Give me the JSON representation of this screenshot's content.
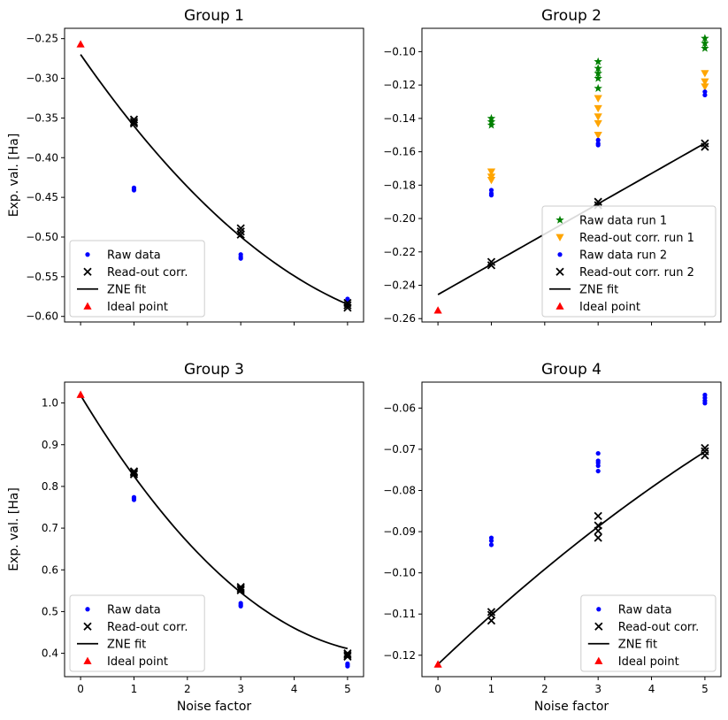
{
  "figure": {
    "xlabel": "Noise factor",
    "ylabel": "Exp. val. [Ha]"
  },
  "chart_data": [
    {
      "type": "scatter",
      "title": "Group 1",
      "xlim": [
        -0.3,
        5.3
      ],
      "ylim": [
        -0.607,
        -0.237
      ],
      "xticks": [
        0,
        1,
        2,
        3,
        4,
        5
      ],
      "yticks": [
        -0.6,
        -0.55,
        -0.5,
        -0.45,
        -0.4,
        -0.35,
        -0.3,
        -0.25
      ],
      "yticklabels": [
        "−0.60",
        "−0.55",
        "−0.50",
        "−0.45",
        "−0.40",
        "−0.35",
        "−0.30",
        "−0.25"
      ],
      "show_xticklabels": false,
      "show_xlabel": false,
      "show_ylabel": true,
      "legend_position": "lower-left",
      "series": [
        {
          "name": "Raw data",
          "marker": "dot",
          "color": "#0000ff",
          "points": [
            [
              1,
              -0.438
            ],
            [
              1,
              -0.44
            ],
            [
              1,
              -0.441
            ],
            [
              3,
              -0.522
            ],
            [
              3,
              -0.525
            ],
            [
              3,
              -0.527
            ],
            [
              5,
              -0.578
            ],
            [
              5,
              -0.58
            ]
          ]
        },
        {
          "name": "Read-out corr.",
          "marker": "x",
          "color": "#000000",
          "points": [
            [
              1,
              -0.352
            ],
            [
              1,
              -0.355
            ],
            [
              1,
              -0.357
            ],
            [
              3,
              -0.489
            ],
            [
              3,
              -0.493
            ],
            [
              3,
              -0.497
            ],
            [
              5,
              -0.583
            ],
            [
              5,
              -0.586
            ],
            [
              5,
              -0.589
            ]
          ]
        },
        {
          "name": "ZNE fit",
          "marker": "line",
          "color": "#000000",
          "fit": {
            "x0": 0,
            "x1": 5,
            "coef": [
              -0.27,
              -0.0969,
              0.00679
            ]
          }
        },
        {
          "name": "Ideal point",
          "marker": "triangle",
          "color": "#ff0000",
          "points": [
            [
              0,
              -0.257
            ]
          ]
        }
      ]
    },
    {
      "type": "scatter",
      "title": "Group 2",
      "xlim": [
        -0.3,
        5.3
      ],
      "ylim": [
        -0.262,
        -0.086
      ],
      "xticks": [
        0,
        1,
        2,
        3,
        4,
        5
      ],
      "yticks": [
        -0.26,
        -0.24,
        -0.22,
        -0.2,
        -0.18,
        -0.16,
        -0.14,
        -0.12,
        -0.1
      ],
      "yticklabels": [
        "−0.26",
        "−0.24",
        "−0.22",
        "−0.20",
        "−0.18",
        "−0.16",
        "−0.14",
        "−0.12",
        "−0.10"
      ],
      "show_xticklabels": false,
      "show_xlabel": false,
      "show_ylabel": false,
      "legend_position": "lower-right",
      "series": [
        {
          "name": "Raw data run 1",
          "marker": "star",
          "color": "#008000",
          "points": [
            [
              1,
              -0.14
            ],
            [
              1,
              -0.142
            ],
            [
              1,
              -0.144
            ],
            [
              3,
              -0.106
            ],
            [
              3,
              -0.11
            ],
            [
              3,
              -0.113
            ],
            [
              3,
              -0.116
            ],
            [
              3,
              -0.122
            ],
            [
              5,
              -0.092
            ],
            [
              5,
              -0.095
            ],
            [
              5,
              -0.098
            ]
          ]
        },
        {
          "name": "Read-out corr. run 1",
          "marker": "triangle-down",
          "color": "#ffa500",
          "points": [
            [
              1,
              -0.172
            ],
            [
              1,
              -0.175
            ],
            [
              1,
              -0.177
            ],
            [
              3,
              -0.128
            ],
            [
              3,
              -0.134
            ],
            [
              3,
              -0.139
            ],
            [
              3,
              -0.143
            ],
            [
              3,
              -0.15
            ],
            [
              5,
              -0.113
            ],
            [
              5,
              -0.118
            ],
            [
              5,
              -0.121
            ]
          ]
        },
        {
          "name": "Raw data run 2",
          "marker": "dot",
          "color": "#0000ff",
          "points": [
            [
              1,
              -0.183
            ],
            [
              1,
              -0.185
            ],
            [
              1,
              -0.186
            ],
            [
              3,
              -0.153
            ],
            [
              3,
              -0.155
            ],
            [
              3,
              -0.156
            ],
            [
              5,
              -0.124
            ],
            [
              5,
              -0.126
            ]
          ]
        },
        {
          "name": "Read-out corr. run 2",
          "marker": "x",
          "color": "#000000",
          "points": [
            [
              1,
              -0.226
            ],
            [
              1,
              -0.228
            ],
            [
              3,
              -0.19
            ],
            [
              3,
              -0.192
            ],
            [
              5,
              -0.155
            ],
            [
              5,
              -0.157
            ]
          ]
        },
        {
          "name": "ZNE fit",
          "marker": "line",
          "color": "#000000",
          "fit": {
            "x0": 0,
            "x1": 5,
            "coef": [
              -0.2456,
              0.01815,
              0
            ]
          }
        },
        {
          "name": "Ideal point",
          "marker": "triangle",
          "color": "#ff0000",
          "points": [
            [
              0,
              -0.255
            ]
          ]
        }
      ]
    },
    {
      "type": "scatter",
      "title": "Group 3",
      "xlim": [
        -0.3,
        5.3
      ],
      "ylim": [
        0.344,
        1.05
      ],
      "xticks": [
        0,
        1,
        2,
        3,
        4,
        5
      ],
      "yticks": [
        0.4,
        0.5,
        0.6,
        0.7,
        0.8,
        0.9,
        1.0
      ],
      "yticklabels": [
        "0.4",
        "0.5",
        "0.6",
        "0.7",
        "0.8",
        "0.9",
        "1.0"
      ],
      "show_xticklabels": true,
      "show_xlabel": true,
      "show_ylabel": true,
      "legend_position": "lower-left",
      "series": [
        {
          "name": "Raw data",
          "marker": "dot",
          "color": "#0000ff",
          "points": [
            [
              1,
              0.768
            ],
            [
              1,
              0.771
            ],
            [
              1,
              0.774
            ],
            [
              3,
              0.513
            ],
            [
              3,
              0.516
            ],
            [
              3,
              0.52
            ],
            [
              5,
              0.369
            ],
            [
              5,
              0.372
            ],
            [
              5,
              0.375
            ]
          ]
        },
        {
          "name": "Read-out corr.",
          "marker": "x",
          "color": "#000000",
          "points": [
            [
              1,
              0.829
            ],
            [
              1,
              0.833
            ],
            [
              1,
              0.836
            ],
            [
              3,
              0.551
            ],
            [
              3,
              0.555
            ],
            [
              3,
              0.559
            ],
            [
              5,
              0.392
            ],
            [
              5,
              0.396
            ],
            [
              5,
              0.4
            ]
          ]
        },
        {
          "name": "ZNE fit",
          "marker": "line",
          "color": "#000000",
          "fit": {
            "x0": 0,
            "x1": 5,
            "coef": [
              1.0185,
              -0.2117,
              0.01805
            ]
          }
        },
        {
          "name": "Ideal point",
          "marker": "triangle",
          "color": "#ff0000",
          "points": [
            [
              0,
              1.02
            ]
          ]
        }
      ]
    },
    {
      "type": "scatter",
      "title": "Group 4",
      "xlim": [
        -0.3,
        5.3
      ],
      "ylim": [
        -0.1252,
        -0.0537
      ],
      "xticks": [
        0,
        1,
        2,
        3,
        4,
        5
      ],
      "yticks": [
        -0.12,
        -0.11,
        -0.1,
        -0.09,
        -0.08,
        -0.07,
        -0.06
      ],
      "yticklabels": [
        "−0.12",
        "−0.11",
        "−0.10",
        "−0.09",
        "−0.08",
        "−0.07",
        "−0.06"
      ],
      "show_xticklabels": true,
      "show_xlabel": true,
      "show_ylabel": false,
      "legend_position": "lower-right",
      "series": [
        {
          "name": "Raw data",
          "marker": "dot",
          "color": "#0000ff",
          "points": [
            [
              1,
              -0.0915
            ],
            [
              1,
              -0.0922
            ],
            [
              1,
              -0.0932
            ],
            [
              3,
              -0.071
            ],
            [
              3,
              -0.0728
            ],
            [
              3,
              -0.0733
            ],
            [
              3,
              -0.074
            ],
            [
              3,
              -0.0753
            ],
            [
              5,
              -0.0568
            ],
            [
              5,
              -0.0575
            ],
            [
              5,
              -0.0582
            ],
            [
              5,
              -0.0588
            ]
          ]
        },
        {
          "name": "Read-out corr.",
          "marker": "x",
          "color": "#000000",
          "points": [
            [
              1,
              -0.1095
            ],
            [
              1,
              -0.1102
            ],
            [
              1,
              -0.1116
            ],
            [
              3,
              -0.0862
            ],
            [
              3,
              -0.0885
            ],
            [
              3,
              -0.0898
            ],
            [
              3,
              -0.0915
            ],
            [
              5,
              -0.0697
            ],
            [
              5,
              -0.0705
            ],
            [
              5,
              -0.0715
            ]
          ]
        },
        {
          "name": "ZNE fit",
          "marker": "line",
          "color": "#000000",
          "fit": {
            "x0": 0,
            "x1": 5,
            "coef": [
              -0.1222,
              0.01235,
              -0.000405
            ]
          }
        },
        {
          "name": "Ideal point",
          "marker": "triangle",
          "color": "#ff0000",
          "points": [
            [
              0,
              -0.1222
            ]
          ]
        }
      ]
    }
  ]
}
